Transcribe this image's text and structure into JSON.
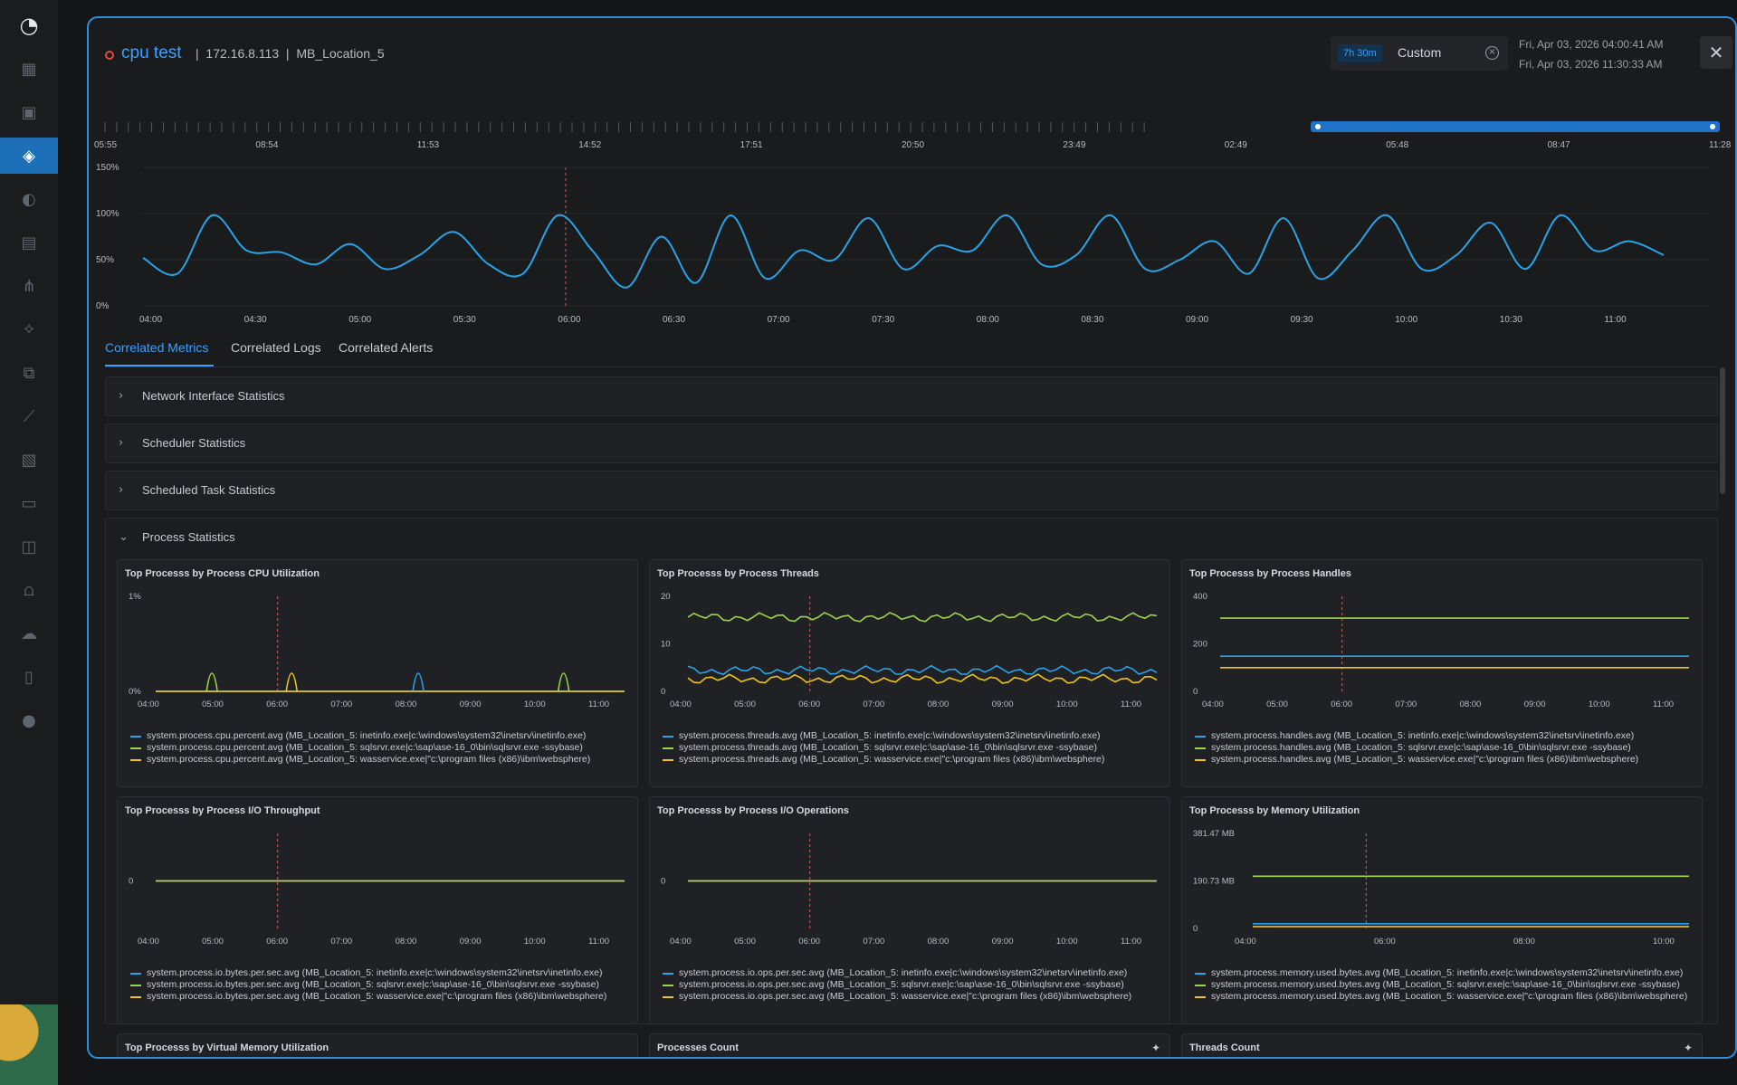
{
  "header": {
    "title": "cpu test",
    "meta": "|  172.16.8.113  |  MB_Location_5",
    "time_range_badge": "7h 30m",
    "time_range_value": "Custom",
    "start_time": "Fri, Apr 03, 2026 04:00:41 AM",
    "end_time": "Fri, Apr 03, 2026 11:30:33 AM"
  },
  "overview": {
    "nav_ticks": [
      "05:55",
      "08:54",
      "11:53",
      "14:52",
      "17:51",
      "20:50",
      "23:49",
      "02:49",
      "05:48",
      "08:47",
      "11:28"
    ],
    "y_ticks": [
      "150%",
      "100%",
      "50%",
      "0%"
    ],
    "x_ticks": [
      "04:00",
      "04:30",
      "05:00",
      "05:30",
      "06:00",
      "06:30",
      "07:00",
      "07:30",
      "08:00",
      "08:30",
      "09:00",
      "09:30",
      "10:00",
      "10:30",
      "11:00"
    ]
  },
  "chart_data": [
    {
      "type": "line",
      "title": "",
      "ylim": [
        0,
        150
      ],
      "x": [
        "04:00",
        "04:10",
        "04:20",
        "04:30",
        "04:40",
        "04:50",
        "05:00",
        "05:10",
        "05:20",
        "05:30",
        "05:40",
        "05:50",
        "06:00",
        "06:10",
        "06:20",
        "06:30",
        "06:40",
        "06:50",
        "07:00",
        "07:10",
        "07:20",
        "07:30",
        "07:40",
        "07:50",
        "08:00",
        "08:10",
        "08:20",
        "08:30",
        "08:40",
        "08:50",
        "09:00",
        "09:10",
        "09:20",
        "09:30",
        "09:40",
        "09:50",
        "10:00",
        "10:10",
        "10:20",
        "10:30",
        "10:40",
        "10:50",
        "11:00",
        "11:10",
        "11:20"
      ],
      "series": [
        {
          "values": [
            52,
            35,
            98,
            60,
            58,
            45,
            67,
            40,
            55,
            80,
            45,
            35,
            98,
            60,
            20,
            75,
            25,
            98,
            30,
            60,
            50,
            95,
            40,
            65,
            60,
            98,
            45,
            55,
            98,
            40,
            50,
            70,
            35,
            95,
            30,
            60,
            98,
            40,
            55,
            90,
            40,
            98,
            60,
            70,
            55
          ]
        }
      ]
    }
  ],
  "tabs": [
    "Correlated Metrics",
    "Correlated Logs",
    "Correlated Alerts"
  ],
  "sections": [
    {
      "label": "Network Interface Statistics",
      "chev": "›"
    },
    {
      "label": "Scheduler Statistics",
      "chev": "›"
    },
    {
      "label": "Scheduled Task Statistics",
      "chev": "›"
    },
    {
      "label": "Process Statistics",
      "chev": "⌄"
    }
  ],
  "panels": {
    "cpu": {
      "title": "Top Processs by Process CPU Utilization",
      "y_ticks": [
        "1%",
        "0%"
      ],
      "x_ticks": [
        "04:00",
        "05:00",
        "06:00",
        "07:00",
        "08:00",
        "09:00",
        "10:00",
        "11:00"
      ],
      "legend": [
        "system.process.cpu.percent.avg (MB_Location_5: inetinfo.exe|c:\\windows\\system32\\inetsrv\\inetinfo.exe)",
        "system.process.cpu.percent.avg (MB_Location_5: sqlsrvr.exe|c:\\sap\\ase-16_0\\bin\\sqlsrvr.exe -ssybase)",
        "system.process.cpu.percent.avg (MB_Location_5: wasservice.exe|\"c:\\program files (x86)\\ibm\\websphere)"
      ]
    },
    "threads": {
      "title": "Top Processs by Process Threads",
      "y_ticks": [
        "20",
        "10",
        "0"
      ],
      "x_ticks": [
        "04:00",
        "05:00",
        "06:00",
        "07:00",
        "08:00",
        "09:00",
        "10:00",
        "11:00"
      ],
      "legend": [
        "system.process.threads.avg (MB_Location_5: inetinfo.exe|c:\\windows\\system32\\inetsrv\\inetinfo.exe)",
        "system.process.threads.avg (MB_Location_5: sqlsrvr.exe|c:\\sap\\ase-16_0\\bin\\sqlsrvr.exe -ssybase)",
        "system.process.threads.avg (MB_Location_5: wasservice.exe|\"c:\\program files (x86)\\ibm\\websphere)"
      ]
    },
    "handles": {
      "title": "Top Processs by Process Handles",
      "y_ticks": [
        "400",
        "200",
        "0"
      ],
      "x_ticks": [
        "04:00",
        "05:00",
        "06:00",
        "07:00",
        "08:00",
        "09:00",
        "10:00",
        "11:00"
      ],
      "legend": [
        "system.process.handles.avg (MB_Location_5: inetinfo.exe|c:\\windows\\system32\\inetsrv\\inetinfo.exe)",
        "system.process.handles.avg (MB_Location_5: sqlsrvr.exe|c:\\sap\\ase-16_0\\bin\\sqlsrvr.exe -ssybase)",
        "system.process.handles.avg (MB_Location_5: wasservice.exe|\"c:\\program files (x86)\\ibm\\websphere)"
      ]
    },
    "io_throughput": {
      "title": "Top Processs by Process I/O Throughput",
      "y_ticks": [
        "0"
      ],
      "x_ticks": [
        "04:00",
        "05:00",
        "06:00",
        "07:00",
        "08:00",
        "09:00",
        "10:00",
        "11:00"
      ],
      "legend": [
        "system.process.io.bytes.per.sec.avg (MB_Location_5: inetinfo.exe|c:\\windows\\system32\\inetsrv\\inetinfo.exe)",
        "system.process.io.bytes.per.sec.avg (MB_Location_5: sqlsrvr.exe|c:\\sap\\ase-16_0\\bin\\sqlsrvr.exe -ssybase)",
        "system.process.io.bytes.per.sec.avg (MB_Location_5: wasservice.exe|\"c:\\program files (x86)\\ibm\\websphere)"
      ]
    },
    "io_ops": {
      "title": "Top Processs by Process I/O Operations",
      "y_ticks": [
        "0"
      ],
      "x_ticks": [
        "04:00",
        "05:00",
        "06:00",
        "07:00",
        "08:00",
        "09:00",
        "10:00",
        "11:00"
      ],
      "legend": [
        "system.process.io.ops.per.sec.avg (MB_Location_5: inetinfo.exe|c:\\windows\\system32\\inetsrv\\inetinfo.exe)",
        "system.process.io.ops.per.sec.avg (MB_Location_5: sqlsrvr.exe|c:\\sap\\ase-16_0\\bin\\sqlsrvr.exe -ssybase)",
        "system.process.io.ops.per.sec.avg (MB_Location_5: wasservice.exe|\"c:\\program files (x86)\\ibm\\websphere)"
      ]
    },
    "memory": {
      "title": "Top Processs by Memory Utilization",
      "y_ticks": [
        "381.47 MB",
        "190.73 MB",
        "0"
      ],
      "x_ticks": [
        "04:00",
        "06:00",
        "08:00",
        "10:00"
      ],
      "legend": [
        "system.process.memory.used.bytes.avg (MB_Location_5: inetinfo.exe|c:\\windows\\system32\\inetsrv\\inetinfo.exe)",
        "system.process.memory.used.bytes.avg (MB_Location_5: sqlsrvr.exe|c:\\sap\\ase-16_0\\bin\\sqlsrvr.exe -ssybase)",
        "system.process.memory.used.bytes.avg (MB_Location_5: wasservice.exe|\"c:\\program files (x86)\\ibm\\websphere)"
      ]
    },
    "vmem": {
      "title": "Top Processs by Virtual Memory Utilization"
    },
    "proc_count": {
      "title": "Processes Count"
    },
    "thread_count": {
      "title": "Threads Count"
    }
  },
  "colors": {
    "blue": "#2aa3e6",
    "green": "#9bd54a",
    "yellow": "#f0c419",
    "accent": "#3aa0ff",
    "marker": "#e0574a"
  }
}
